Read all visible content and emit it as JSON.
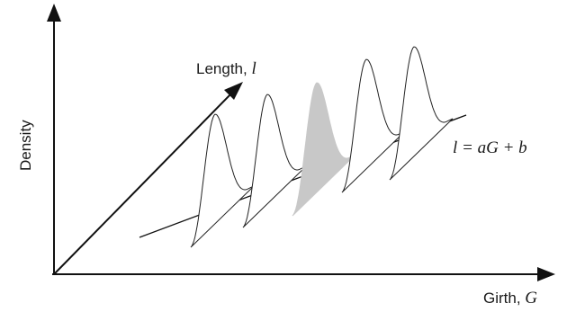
{
  "labels": {
    "y_axis": "Density",
    "x_axis_text": "Girth, ",
    "x_axis_var": "G",
    "diag_axis_text": "Length, ",
    "diag_axis_var": "l",
    "equation": "l = aG + b"
  },
  "distributions": [
    {
      "id": "dist-1",
      "shaded": false
    },
    {
      "id": "dist-2",
      "shaded": false
    },
    {
      "id": "dist-3",
      "shaded": true
    },
    {
      "id": "dist-4",
      "shaded": false
    },
    {
      "id": "dist-5",
      "shaded": false
    }
  ],
  "colors": {
    "ink": "#111111",
    "shade": "#c8c8c8",
    "background": "#ffffff"
  }
}
